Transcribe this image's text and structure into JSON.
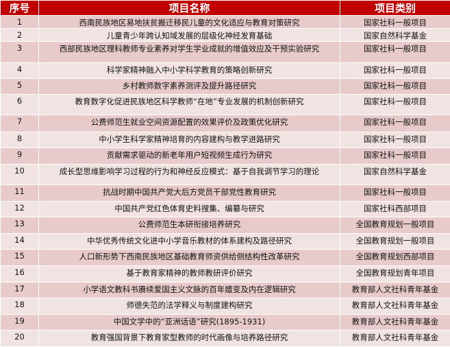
{
  "header": {
    "index": "序号",
    "name": "项目名称",
    "category": "项目类别"
  },
  "colors": {
    "header_bg": "#c00000",
    "row_odd": "#e8cacb",
    "row_even": "#f2e3e3"
  },
  "rows": [
    {
      "index": "1",
      "name": "西南民族地区易地扶贫搬迁移民儿童的文化适应与教育对策研究",
      "category": "国家社科一般项目"
    },
    {
      "index": "2",
      "name": "儿童青少年跨认知域发展的层级化神经发育基础",
      "category": "国家自然科学基金"
    },
    {
      "index": "3",
      "name": "西部民族地区理科教师专业素养对学生学业成就的增值效应及干预实验研究",
      "category": "国家社科一般项目"
    },
    {
      "index": "4",
      "name": "科学家精神融入中小学科学教育的策略创新研究",
      "category": "国家社科一般项目"
    },
    {
      "index": "5",
      "name": "乡村教师数字素养测评及提升路径研究",
      "category": "国家社科一般项目"
    },
    {
      "index": "6",
      "name": "教育数字化促进民族地区科学教师“在地”专业发展的机制创新研究",
      "category": "国家社科一般项目"
    },
    {
      "index": "7",
      "name": "公费师范生就业空间资源配置的效果评价及政策优化研究",
      "category": "国家社科一般项目"
    },
    {
      "index": "8",
      "name": "中小学生科学家精神培育的内容建构与教学进路研究",
      "category": "国家社科一般项目"
    },
    {
      "index": "9",
      "name": "贡献需求驱动的新老年用户短视频生成行为研究",
      "category": "国家社科一般项目"
    },
    {
      "index": "10",
      "name": "成长型思维影响学习过程的行为和神经反应模式：基于自我调节学习的理论",
      "category": "国家自然科学基金"
    },
    {
      "index": "11",
      "name": "抗战时期中国共产党大后方党员干部党性教育研究",
      "category": "国家社科一般项目"
    },
    {
      "index": "12",
      "name": "中国共产党红色体育史料搜集、编纂与研究",
      "category": "国家社科西部项目"
    },
    {
      "index": "13",
      "name": "公费师范生本研衔接培养研究",
      "category": "全国教育规划一般项目"
    },
    {
      "index": "14",
      "name": "中华优秀传统文化进中小学音乐教材的体系建构及路径研究",
      "category": "全国教育规划一般项目"
    },
    {
      "index": "15",
      "name": "人口新形势下西南民族地区基础教育师资供给侧结构性改革研究",
      "category": "全国教育规划西部项目"
    },
    {
      "index": "16",
      "name": "基于教育家精神的教师教研评价研究",
      "category": "全国教育规划青年项目"
    },
    {
      "index": "17",
      "name": "小学语文教科书赓续爱国主义文脉的百年嬗变及内在逻辑研究",
      "category": "教育部人文社科青年基金"
    },
    {
      "index": "18",
      "name": "师德失范的法学释义与制度建构研究",
      "category": "教育部人文社科青年基金"
    },
    {
      "index": "19",
      "name": "中国文学中的“亚洲话语”研究(1895-1931)",
      "category": "教育部人文社科青年基金"
    },
    {
      "index": "20",
      "name": "教育强国背景下教育家型教师的时代画像与培养路径研究",
      "category": "教育部人文社科青年基金"
    }
  ]
}
